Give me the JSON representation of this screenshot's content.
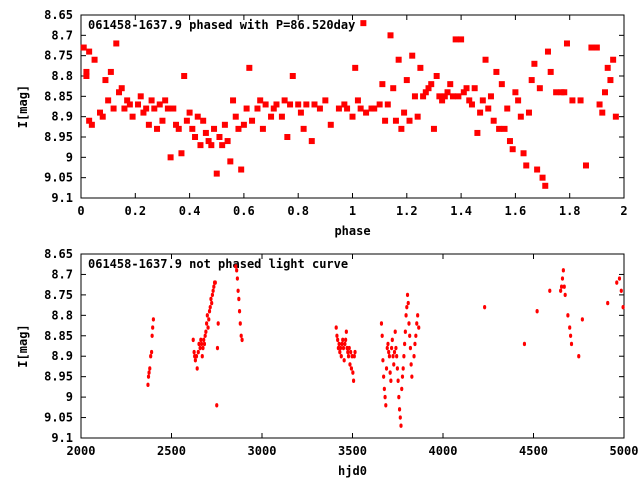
{
  "chart_data": [
    {
      "type": "scatter",
      "title": "061458-1637.9 phased with P=86.520day",
      "xlabel": "phase",
      "ylabel": "I[mag]",
      "xlim": [
        0,
        2
      ],
      "ylim": [
        9.1,
        8.65
      ],
      "inverted_y": true,
      "xticks": [
        "0",
        "0.2",
        "0.4",
        "0.6",
        "0.8",
        "1",
        "1.2",
        "1.4",
        "1.6",
        "1.8",
        "2"
      ],
      "yticks": [
        "8.65",
        "8.7",
        "8.75",
        "8.8",
        "8.85",
        "8.9",
        "8.95",
        "9",
        "9.05",
        "9.1"
      ],
      "grid": false,
      "marker_color": "#ff0000",
      "marker": "filled-square",
      "points": [
        [
          0.01,
          8.73
        ],
        [
          0.02,
          8.79
        ],
        [
          0.02,
          8.8
        ],
        [
          0.03,
          8.74
        ],
        [
          0.03,
          8.91
        ],
        [
          0.04,
          8.92
        ],
        [
          0.05,
          8.76
        ],
        [
          0.07,
          8.89
        ],
        [
          0.08,
          8.9
        ],
        [
          0.09,
          8.81
        ],
        [
          0.1,
          8.86
        ],
        [
          0.11,
          8.79
        ],
        [
          0.12,
          8.88
        ],
        [
          0.13,
          8.72
        ],
        [
          0.14,
          8.84
        ],
        [
          0.15,
          8.83
        ],
        [
          0.16,
          8.88
        ],
        [
          0.17,
          8.86
        ],
        [
          0.18,
          8.87
        ],
        [
          0.19,
          8.9
        ],
        [
          0.21,
          8.87
        ],
        [
          0.22,
          8.85
        ],
        [
          0.23,
          8.89
        ],
        [
          0.24,
          8.88
        ],
        [
          0.25,
          8.92
        ],
        [
          0.26,
          8.86
        ],
        [
          0.27,
          8.88
        ],
        [
          0.28,
          8.93
        ],
        [
          0.29,
          8.87
        ],
        [
          0.3,
          8.91
        ],
        [
          0.31,
          8.86
        ],
        [
          0.32,
          8.88
        ],
        [
          0.33,
          9.0
        ],
        [
          0.34,
          8.88
        ],
        [
          0.35,
          8.92
        ],
        [
          0.36,
          8.93
        ],
        [
          0.37,
          8.99
        ],
        [
          0.38,
          8.8
        ],
        [
          0.39,
          8.91
        ],
        [
          0.4,
          8.89
        ],
        [
          0.41,
          8.93
        ],
        [
          0.42,
          8.95
        ],
        [
          0.43,
          8.9
        ],
        [
          0.44,
          8.97
        ],
        [
          0.45,
          8.91
        ],
        [
          0.46,
          8.94
        ],
        [
          0.47,
          8.96
        ],
        [
          0.48,
          8.97
        ],
        [
          0.49,
          8.93
        ],
        [
          0.5,
          9.04
        ],
        [
          0.51,
          8.95
        ],
        [
          0.52,
          8.97
        ],
        [
          0.53,
          8.92
        ],
        [
          0.54,
          8.96
        ],
        [
          0.55,
          9.01
        ],
        [
          0.56,
          8.86
        ],
        [
          0.57,
          8.9
        ],
        [
          0.58,
          8.93
        ],
        [
          0.59,
          9.03
        ],
        [
          0.6,
          8.92
        ],
        [
          0.61,
          8.88
        ],
        [
          0.62,
          8.78
        ],
        [
          0.63,
          8.91
        ],
        [
          0.65,
          8.88
        ],
        [
          0.66,
          8.86
        ],
        [
          0.67,
          8.93
        ],
        [
          0.68,
          8.87
        ],
        [
          0.7,
          8.9
        ],
        [
          0.71,
          8.88
        ],
        [
          0.72,
          8.87
        ],
        [
          0.74,
          8.9
        ],
        [
          0.75,
          8.86
        ],
        [
          0.76,
          8.95
        ],
        [
          0.77,
          8.87
        ],
        [
          0.78,
          8.8
        ],
        [
          0.8,
          8.87
        ],
        [
          0.81,
          8.89
        ],
        [
          0.82,
          8.93
        ],
        [
          0.83,
          8.87
        ],
        [
          0.85,
          8.96
        ],
        [
          0.86,
          8.87
        ],
        [
          0.88,
          8.88
        ],
        [
          0.9,
          8.86
        ],
        [
          0.92,
          8.92
        ],
        [
          0.95,
          8.88
        ],
        [
          0.97,
          8.87
        ],
        [
          0.98,
          8.88
        ],
        [
          1.0,
          8.9
        ],
        [
          1.01,
          8.78
        ],
        [
          1.02,
          8.86
        ],
        [
          1.03,
          8.88
        ],
        [
          1.04,
          8.67
        ],
        [
          1.05,
          8.89
        ],
        [
          1.07,
          8.88
        ],
        [
          1.08,
          8.88
        ],
        [
          1.1,
          8.87
        ],
        [
          1.11,
          8.82
        ],
        [
          1.12,
          8.91
        ],
        [
          1.13,
          8.87
        ],
        [
          1.14,
          8.7
        ],
        [
          1.15,
          8.83
        ],
        [
          1.16,
          8.91
        ],
        [
          1.17,
          8.76
        ],
        [
          1.18,
          8.93
        ],
        [
          1.19,
          8.89
        ],
        [
          1.2,
          8.81
        ],
        [
          1.21,
          8.91
        ],
        [
          1.22,
          8.75
        ],
        [
          1.23,
          8.85
        ],
        [
          1.24,
          8.9
        ],
        [
          1.25,
          8.78
        ],
        [
          1.26,
          8.85
        ],
        [
          1.27,
          8.84
        ],
        [
          1.28,
          8.83
        ],
        [
          1.29,
          8.82
        ],
        [
          1.3,
          8.93
        ],
        [
          1.31,
          8.8
        ],
        [
          1.32,
          8.85
        ],
        [
          1.33,
          8.86
        ],
        [
          1.34,
          8.85
        ],
        [
          1.35,
          8.84
        ],
        [
          1.36,
          8.82
        ],
        [
          1.37,
          8.85
        ],
        [
          1.38,
          8.71
        ],
        [
          1.39,
          8.85
        ],
        [
          1.4,
          8.71
        ],
        [
          1.41,
          8.84
        ],
        [
          1.42,
          8.83
        ],
        [
          1.43,
          8.86
        ],
        [
          1.44,
          8.87
        ],
        [
          1.45,
          8.83
        ],
        [
          1.46,
          8.94
        ],
        [
          1.47,
          8.89
        ],
        [
          1.48,
          8.86
        ],
        [
          1.49,
          8.76
        ],
        [
          1.5,
          8.88
        ],
        [
          1.51,
          8.85
        ],
        [
          1.52,
          8.91
        ],
        [
          1.53,
          8.79
        ],
        [
          1.54,
          8.93
        ],
        [
          1.55,
          8.82
        ],
        [
          1.56,
          8.93
        ],
        [
          1.57,
          8.88
        ],
        [
          1.58,
          8.96
        ],
        [
          1.59,
          8.98
        ],
        [
          1.6,
          8.84
        ],
        [
          1.61,
          8.86
        ],
        [
          1.62,
          8.9
        ],
        [
          1.63,
          8.99
        ],
        [
          1.64,
          9.02
        ],
        [
          1.65,
          8.89
        ],
        [
          1.66,
          8.81
        ],
        [
          1.67,
          8.77
        ],
        [
          1.68,
          9.03
        ],
        [
          1.69,
          8.83
        ],
        [
          1.7,
          9.05
        ],
        [
          1.71,
          9.07
        ],
        [
          1.72,
          8.74
        ],
        [
          1.73,
          8.79
        ],
        [
          1.75,
          8.84
        ],
        [
          1.77,
          8.84
        ],
        [
          1.78,
          8.84
        ],
        [
          1.79,
          8.72
        ],
        [
          1.81,
          8.86
        ],
        [
          1.84,
          8.86
        ],
        [
          1.86,
          9.02
        ],
        [
          1.88,
          8.73
        ],
        [
          1.9,
          8.73
        ],
        [
          1.91,
          8.87
        ],
        [
          1.92,
          8.89
        ],
        [
          1.93,
          8.84
        ],
        [
          1.94,
          8.78
        ],
        [
          1.95,
          8.81
        ],
        [
          1.96,
          8.76
        ],
        [
          1.97,
          8.9
        ]
      ]
    },
    {
      "type": "scatter",
      "title": "061458-1637.9 not phased light curve",
      "xlabel": "hjd0",
      "ylabel": "I[mag]",
      "xlim": [
        2000,
        5000
      ],
      "ylim": [
        9.1,
        8.65
      ],
      "inverted_y": true,
      "xticks": [
        "2000",
        "2500",
        "3000",
        "3500",
        "4000",
        "4500",
        "5000"
      ],
      "yticks": [
        "8.65",
        "8.7",
        "8.75",
        "8.8",
        "8.85",
        "8.9",
        "8.95",
        "9",
        "9.05",
        "9.1"
      ],
      "grid": false,
      "marker_color": "#ff0000",
      "marker": "small-dot",
      "points": [
        [
          2370,
          8.97
        ],
        [
          2373,
          8.95
        ],
        [
          2376,
          8.94
        ],
        [
          2380,
          8.93
        ],
        [
          2385,
          8.9
        ],
        [
          2390,
          8.89
        ],
        [
          2393,
          8.85
        ],
        [
          2396,
          8.83
        ],
        [
          2400,
          8.81
        ],
        [
          2620,
          8.86
        ],
        [
          2625,
          8.89
        ],
        [
          2628,
          8.9
        ],
        [
          2632,
          8.91
        ],
        [
          2638,
          8.9
        ],
        [
          2642,
          8.93
        ],
        [
          2648,
          8.89
        ],
        [
          2652,
          8.87
        ],
        [
          2658,
          8.88
        ],
        [
          2662,
          8.86
        ],
        [
          2666,
          8.87
        ],
        [
          2670,
          8.9
        ],
        [
          2674,
          8.88
        ],
        [
          2678,
          8.86
        ],
        [
          2682,
          8.87
        ],
        [
          2686,
          8.85
        ],
        [
          2690,
          8.84
        ],
        [
          2694,
          8.82
        ],
        [
          2698,
          8.8
        ],
        [
          2702,
          8.83
        ],
        [
          2706,
          8.81
        ],
        [
          2710,
          8.79
        ],
        [
          2714,
          8.78
        ],
        [
          2718,
          8.76
        ],
        [
          2722,
          8.77
        ],
        [
          2726,
          8.75
        ],
        [
          2730,
          8.74
        ],
        [
          2734,
          8.73
        ],
        [
          2738,
          8.72
        ],
        [
          2742,
          8.72
        ],
        [
          2750,
          9.02
        ],
        [
          2754,
          8.88
        ],
        [
          2758,
          8.82
        ],
        [
          2855,
          8.68
        ],
        [
          2860,
          8.69
        ],
        [
          2864,
          8.71
        ],
        [
          2868,
          8.74
        ],
        [
          2872,
          8.76
        ],
        [
          2876,
          8.79
        ],
        [
          2880,
          8.82
        ],
        [
          2885,
          8.85
        ],
        [
          2890,
          8.86
        ],
        [
          3410,
          8.83
        ],
        [
          3414,
          8.85
        ],
        [
          3418,
          8.86
        ],
        [
          3422,
          8.88
        ],
        [
          3426,
          8.87
        ],
        [
          3430,
          8.89
        ],
        [
          3434,
          8.88
        ],
        [
          3438,
          8.9
        ],
        [
          3442,
          8.87
        ],
        [
          3446,
          8.86
        ],
        [
          3450,
          8.88
        ],
        [
          3454,
          8.91
        ],
        [
          3458,
          8.87
        ],
        [
          3462,
          8.86
        ],
        [
          3466,
          8.84
        ],
        [
          3470,
          8.88
        ],
        [
          3474,
          8.89
        ],
        [
          3478,
          8.9
        ],
        [
          3482,
          8.88
        ],
        [
          3486,
          8.92
        ],
        [
          3490,
          8.89
        ],
        [
          3494,
          8.93
        ],
        [
          3498,
          8.9
        ],
        [
          3502,
          8.94
        ],
        [
          3506,
          8.96
        ],
        [
          3510,
          8.9
        ],
        [
          3514,
          8.89
        ],
        [
          3660,
          8.82
        ],
        [
          3664,
          8.85
        ],
        [
          3668,
          8.91
        ],
        [
          3672,
          8.95
        ],
        [
          3676,
          8.98
        ],
        [
          3680,
          9.0
        ],
        [
          3684,
          9.02
        ],
        [
          3688,
          8.93
        ],
        [
          3692,
          8.88
        ],
        [
          3696,
          8.87
        ],
        [
          3700,
          8.89
        ],
        [
          3704,
          8.9
        ],
        [
          3708,
          8.94
        ],
        [
          3712,
          8.96
        ],
        [
          3716,
          8.88
        ],
        [
          3720,
          8.86
        ],
        [
          3724,
          8.9
        ],
        [
          3728,
          8.92
        ],
        [
          3732,
          8.89
        ],
        [
          3736,
          8.84
        ],
        [
          3740,
          8.88
        ],
        [
          3744,
          8.9
        ],
        [
          3748,
          8.93
        ],
        [
          3752,
          8.96
        ],
        [
          3756,
          9.0
        ],
        [
          3760,
          9.03
        ],
        [
          3764,
          9.05
        ],
        [
          3768,
          9.07
        ],
        [
          3772,
          8.98
        ],
        [
          3776,
          8.95
        ],
        [
          3780,
          8.93
        ],
        [
          3784,
          8.9
        ],
        [
          3788,
          8.87
        ],
        [
          3792,
          8.84
        ],
        [
          3796,
          8.8
        ],
        [
          3800,
          8.78
        ],
        [
          3804,
          8.75
        ],
        [
          3808,
          8.77
        ],
        [
          3812,
          8.82
        ],
        [
          3816,
          8.85
        ],
        [
          3820,
          8.88
        ],
        [
          3824,
          8.92
        ],
        [
          3828,
          8.95
        ],
        [
          3840,
          8.9
        ],
        [
          3845,
          8.87
        ],
        [
          3850,
          8.85
        ],
        [
          3855,
          8.82
        ],
        [
          3860,
          8.8
        ],
        [
          3866,
          8.83
        ],
        [
          4230,
          8.78
        ],
        [
          4450,
          8.87
        ],
        [
          4520,
          8.79
        ],
        [
          4590,
          8.74
        ],
        [
          4650,
          8.74
        ],
        [
          4655,
          8.73
        ],
        [
          4660,
          8.71
        ],
        [
          4665,
          8.69
        ],
        [
          4670,
          8.73
        ],
        [
          4675,
          8.75
        ],
        [
          4690,
          8.8
        ],
        [
          4700,
          8.83
        ],
        [
          4705,
          8.85
        ],
        [
          4710,
          8.87
        ],
        [
          4750,
          8.9
        ],
        [
          4770,
          8.81
        ],
        [
          4910,
          8.77
        ],
        [
          4960,
          8.72
        ],
        [
          4975,
          8.71
        ],
        [
          4985,
          8.74
        ],
        [
          4995,
          8.78
        ]
      ]
    }
  ]
}
